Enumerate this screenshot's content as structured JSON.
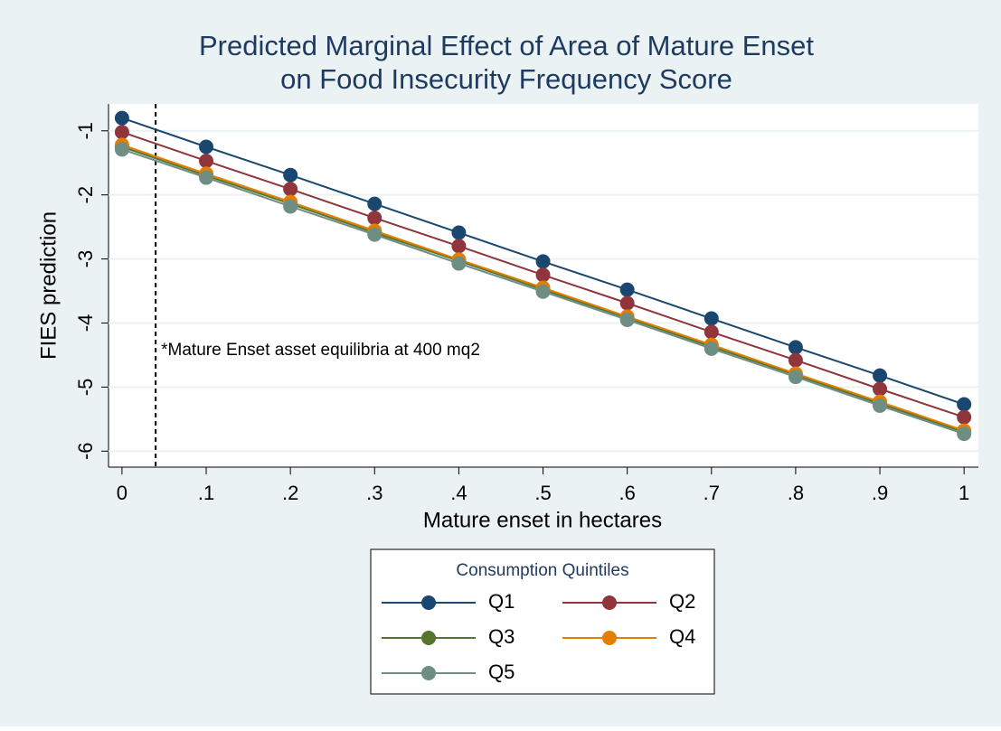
{
  "chart_data": {
    "type": "line",
    "title": "Predicted Marginal Effect of Area of Mature Enset",
    "subtitle": "on Food Insecurity Frequency Score",
    "x_label": "Mature enset in hectares",
    "y_label": "FIES  prediction",
    "x": [
      0,
      0.1,
      0.2,
      0.3,
      0.4,
      0.5,
      0.6,
      0.7,
      0.8,
      0.9,
      1
    ],
    "series": [
      {
        "name": "Q1",
        "color": "#1a476f",
        "values": [
          -0.8,
          -1.25,
          -1.69,
          -2.14,
          -2.59,
          -3.04,
          -3.48,
          -3.93,
          -4.38,
          -4.82,
          -5.27
        ]
      },
      {
        "name": "Q2",
        "color": "#90353b",
        "values": [
          -1.02,
          -1.47,
          -1.91,
          -2.36,
          -2.8,
          -3.25,
          -3.69,
          -4.14,
          -4.58,
          -5.03,
          -5.47
        ]
      },
      {
        "name": "Q3",
        "color": "#55752f",
        "values": [
          -1.25,
          -1.7,
          -2.14,
          -2.59,
          -3.03,
          -3.48,
          -3.92,
          -4.37,
          -4.81,
          -5.26,
          -5.7
        ]
      },
      {
        "name": "Q4",
        "color": "#e37e00",
        "values": [
          -1.22,
          -1.67,
          -2.11,
          -2.56,
          -3.01,
          -3.45,
          -3.9,
          -4.34,
          -4.79,
          -5.23,
          -5.68
        ]
      },
      {
        "name": "Q5",
        "color": "#6e8e84",
        "values": [
          -1.29,
          -1.73,
          -2.18,
          -2.62,
          -3.07,
          -3.51,
          -3.95,
          -4.4,
          -4.84,
          -5.29,
          -5.73
        ]
      }
    ],
    "xlim": [
      -0.016,
      1.017
    ],
    "ylim": [
      -6.25,
      -0.58
    ],
    "xticks": [
      0,
      {
        "value": 0.1,
        "label": ".1"
      },
      {
        "value": 0.2,
        "label": ".2"
      },
      {
        "value": 0.3,
        "label": ".3"
      },
      {
        "value": 0.4,
        "label": ".4"
      },
      {
        "value": 0.5,
        "label": ".5"
      },
      {
        "value": 0.6,
        "label": ".6"
      },
      {
        "value": 0.7,
        "label": ".7"
      },
      {
        "value": 0.8,
        "label": ".8"
      },
      {
        "value": 0.9,
        "label": ".9"
      },
      1
    ],
    "yticks": [
      -1,
      -2,
      -3,
      -4,
      -5,
      -6
    ],
    "grid": true,
    "vline": 0.04,
    "annotation": "*Mature Enset asset equilibria at 400 mq2",
    "legend_title": "Consumption Quintiles",
    "legend_position": "bottom"
  }
}
